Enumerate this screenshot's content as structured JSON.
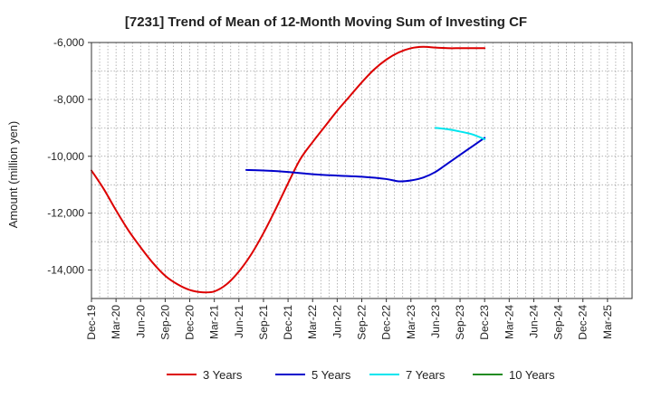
{
  "chart_data": {
    "type": "line",
    "title": "[7231]  Trend of Mean of 12-Month Moving Sum of Investing CF",
    "xlabel": "",
    "ylabel": "Amount (million yen)",
    "ylim": [
      -15000,
      -6000
    ],
    "yticks": [
      -6000,
      -8000,
      -10000,
      -12000,
      -14000
    ],
    "ytick_labels": [
      "-6,000",
      "-8,000",
      "-10,000",
      "-12,000",
      "-14,000"
    ],
    "x_categories": [
      "Dec-19",
      "Mar-20",
      "Jun-20",
      "Sep-20",
      "Dec-20",
      "Mar-21",
      "Jun-21",
      "Sep-21",
      "Dec-21",
      "Mar-22",
      "Jun-22",
      "Sep-22",
      "Dec-22",
      "Mar-23",
      "Jun-23",
      "Sep-23",
      "Dec-23",
      "Mar-24",
      "Jun-24",
      "Sep-24",
      "Dec-24",
      "Mar-25"
    ],
    "grid": true,
    "legend_position": "bottom",
    "series": [
      {
        "name": "3 Years",
        "color": "#dd0000",
        "points": [
          [
            0,
            -10500
          ],
          [
            0.5,
            -11150
          ],
          [
            1,
            -11900
          ],
          [
            1.5,
            -12600
          ],
          [
            2,
            -13200
          ],
          [
            2.5,
            -13750
          ],
          [
            3,
            -14200
          ],
          [
            3.5,
            -14500
          ],
          [
            4,
            -14700
          ],
          [
            4.5,
            -14780
          ],
          [
            5,
            -14750
          ],
          [
            5.5,
            -14500
          ],
          [
            6,
            -14050
          ],
          [
            6.5,
            -13450
          ],
          [
            7,
            -12700
          ],
          [
            7.5,
            -11850
          ],
          [
            8,
            -10950
          ],
          [
            8.5,
            -10100
          ],
          [
            9,
            -9500
          ],
          [
            9.5,
            -8950
          ],
          [
            10,
            -8400
          ],
          [
            10.5,
            -7900
          ],
          [
            11,
            -7400
          ],
          [
            11.5,
            -6950
          ],
          [
            12,
            -6600
          ],
          [
            12.5,
            -6350
          ],
          [
            13,
            -6200
          ],
          [
            13.5,
            -6150
          ],
          [
            14,
            -6180
          ],
          [
            14.5,
            -6200
          ],
          [
            15,
            -6200
          ],
          [
            15.5,
            -6200
          ],
          [
            16,
            -6200
          ]
        ]
      },
      {
        "name": "5 Years",
        "color": "#0000cc",
        "points": [
          [
            6.3,
            -10480
          ],
          [
            7,
            -10500
          ],
          [
            8,
            -10550
          ],
          [
            9,
            -10630
          ],
          [
            10,
            -10680
          ],
          [
            11,
            -10720
          ],
          [
            12,
            -10800
          ],
          [
            12.5,
            -10880
          ],
          [
            13,
            -10850
          ],
          [
            13.5,
            -10750
          ],
          [
            14,
            -10550
          ],
          [
            14.5,
            -10250
          ],
          [
            15,
            -9950
          ],
          [
            15.5,
            -9650
          ],
          [
            16,
            -9350
          ]
        ]
      },
      {
        "name": "7 Years",
        "color": "#00e5ee",
        "points": [
          [
            14,
            -9000
          ],
          [
            14.5,
            -9050
          ],
          [
            15,
            -9130
          ],
          [
            15.5,
            -9230
          ],
          [
            16,
            -9400
          ]
        ]
      },
      {
        "name": "10 Years",
        "color": "#228b22",
        "points": []
      }
    ]
  }
}
